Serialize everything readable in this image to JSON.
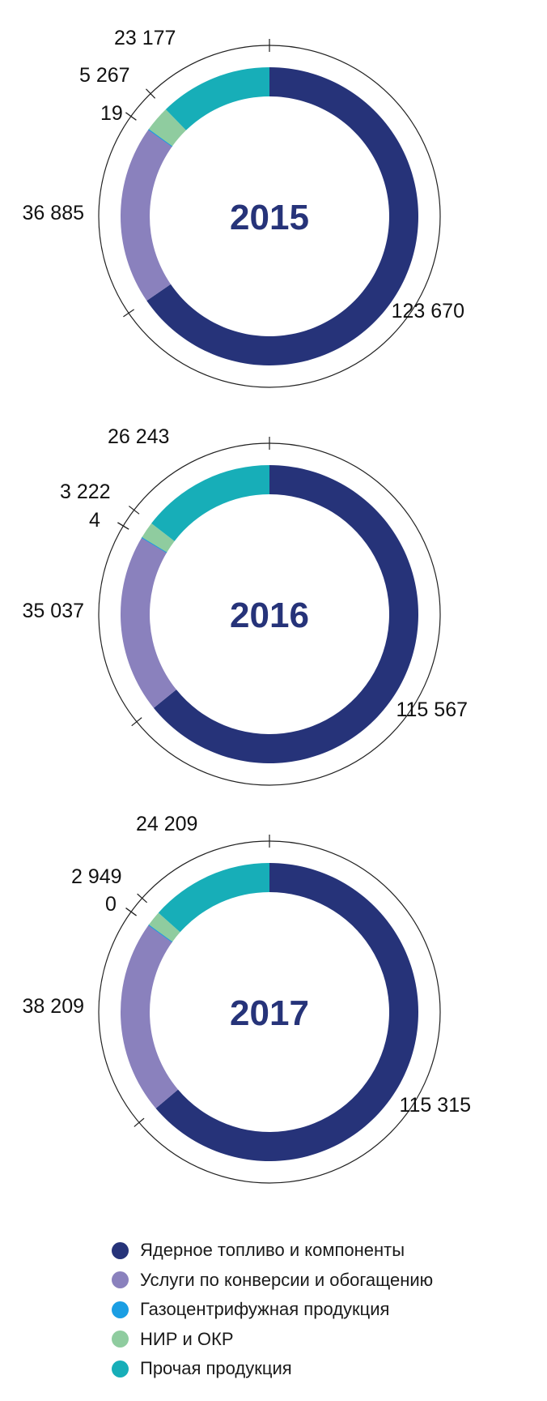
{
  "chart_data": [
    {
      "type": "donut",
      "center_label": "2015",
      "categories": [
        "Ядерное топливо и компоненты",
        "Услуги по конверсии и обогащению",
        "Газоцентрифужная продукция",
        "НИР и ОКР",
        "Прочая продукция"
      ],
      "values": [
        123670,
        36885,
        19,
        5267,
        23177
      ],
      "value_labels": [
        "123 670",
        "36 885",
        "19",
        "5 267",
        "23 177"
      ]
    },
    {
      "type": "donut",
      "center_label": "2016",
      "categories": [
        "Ядерное топливо и компоненты",
        "Услуги по конверсии и обогащению",
        "Газоцентрифужная продукция",
        "НИР и ОКР",
        "Прочая продукция"
      ],
      "values": [
        115567,
        35037,
        4,
        3222,
        26243
      ],
      "value_labels": [
        "115 567",
        "35 037",
        "4",
        "3 222",
        "26 243"
      ]
    },
    {
      "type": "donut",
      "center_label": "2017",
      "categories": [
        "Ядерное топливо и компоненты",
        "Услуги по конверсии и обогащению",
        "Газоцентрифужная продукция",
        "НИР и ОКР",
        "Прочая продукция"
      ],
      "values": [
        115315,
        38209,
        0,
        2949,
        24209
      ],
      "value_labels": [
        "115 315",
        "38 209",
        "0",
        "2 949",
        "24 209"
      ]
    }
  ],
  "legend": [
    {
      "label": "Ядерное топливо и компоненты",
      "color": "#263379"
    },
    {
      "label": "Услуги по конверсии и обогащению",
      "color": "#8a81bd"
    },
    {
      "label": "Газоцентрифужная продукция",
      "color": "#1b9ee3"
    },
    {
      "label": "НИР и ОКР",
      "color": "#8fcc9f"
    },
    {
      "label": "Прочая продукция",
      "color": "#17aeb8"
    }
  ],
  "colors": {
    "year_text": "#263379",
    "outer_ring": "#222222",
    "text": "#111111"
  }
}
